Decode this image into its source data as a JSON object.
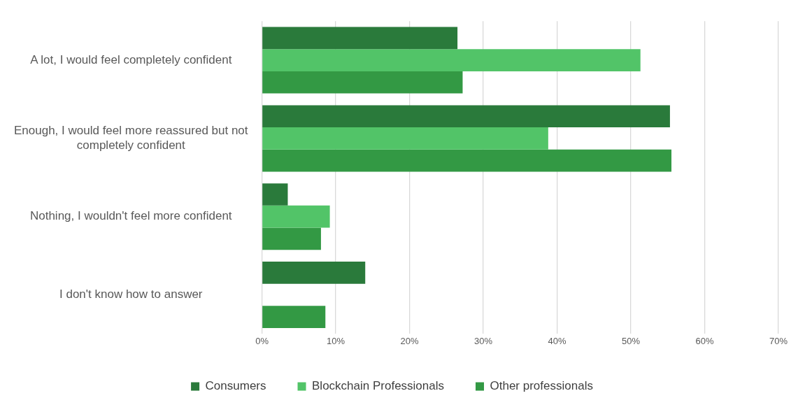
{
  "chart_data": {
    "type": "bar",
    "orientation": "horizontal",
    "categories": [
      "A lot, I would feel completely confident",
      "Enough, I would feel more reassured but not completely confident",
      "Nothing, I wouldn't feel more confident",
      "I don't know how to answer"
    ],
    "series": [
      {
        "name": "Consumers",
        "color": "#2a7a3b",
        "values": [
          26.5,
          55.3,
          3.5,
          14.0
        ]
      },
      {
        "name": "Blockchain Professionals",
        "color": "#52c468",
        "values": [
          51.3,
          38.8,
          9.2,
          null
        ]
      },
      {
        "name": "Other professionals",
        "color": "#339944",
        "values": [
          27.2,
          55.5,
          8.0,
          8.6
        ]
      }
    ],
    "xlim": [
      0,
      70
    ],
    "xticks": [
      {
        "value": 0,
        "label": "0%"
      },
      {
        "value": 10,
        "label": "10%"
      },
      {
        "value": 20,
        "label": "20%"
      },
      {
        "value": 30,
        "label": "30%"
      },
      {
        "value": 40,
        "label": "40%"
      },
      {
        "value": 50,
        "label": "50%"
      },
      {
        "value": 60,
        "label": "60%"
      },
      {
        "value": 70,
        "label": "70%"
      }
    ],
    "grid": "x",
    "legend": "bottom"
  }
}
